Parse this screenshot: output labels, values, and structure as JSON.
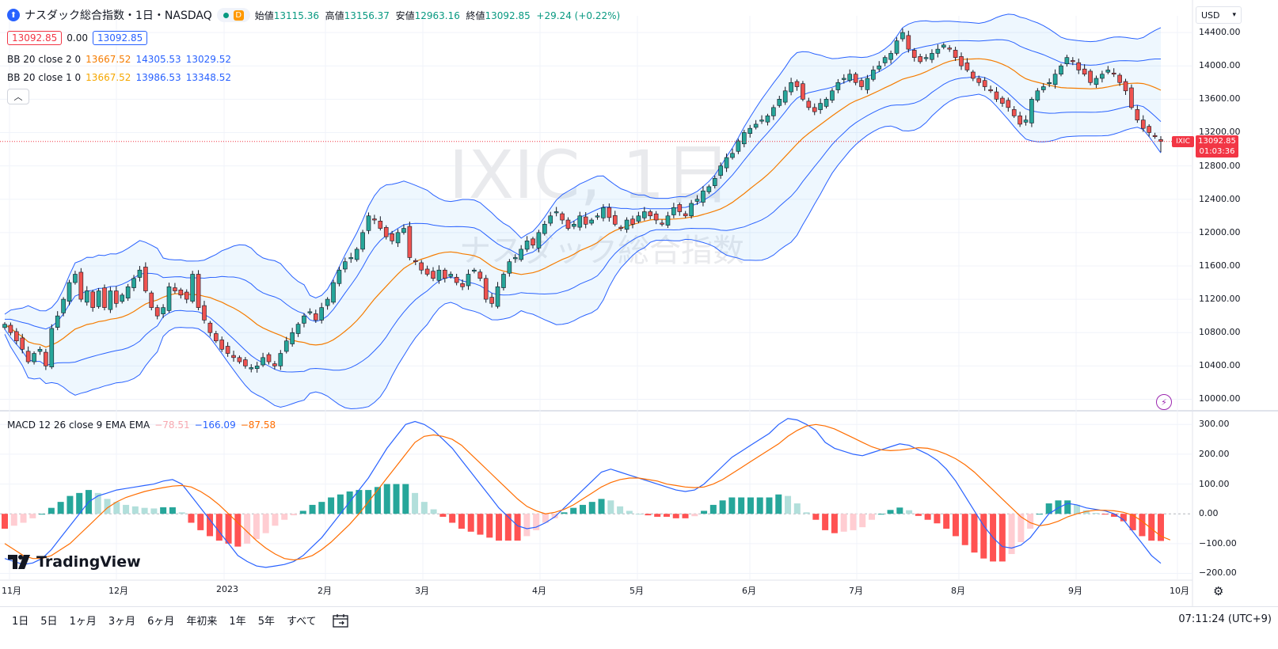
{
  "header": {
    "symbol_name": "ナスダック総合指数・1日・NASDAQ",
    "delay_badge": "D",
    "ohlc": {
      "open_label": "始値",
      "open": "13115.36",
      "high_label": "高値",
      "high": "13156.37",
      "low_label": "安値",
      "low": "12963.16",
      "close_label": "終値",
      "close": "13092.85",
      "change": "+29.24 (+0.22%)"
    },
    "bid": "13092.85",
    "spread": "0.00",
    "ask": "13092.85"
  },
  "indicators": {
    "bb2": {
      "label": "BB 20 close 2 0",
      "basis": "13667.52",
      "upper": "14305.53",
      "lower": "13029.52"
    },
    "bb1": {
      "label": "BB 20 close 1 0",
      "basis": "13667.52",
      "upper": "13986.53",
      "lower": "13348.52"
    },
    "macd": {
      "label": "MACD 12 26 close 9 EMA EMA",
      "hist": "−78.51",
      "macd": "−166.09",
      "signal": "−87.58"
    }
  },
  "watermark": {
    "main": "IXIC, 1日",
    "sub": "ナスダック総合指数"
  },
  "price_axis": {
    "currency": "USD",
    "labels": [
      "14400.00",
      "14000.00",
      "13600.00",
      "13200.00",
      "12800.00",
      "12400.00",
      "12000.00",
      "11600.00",
      "11200.00",
      "10800.00",
      "10400.00",
      "10000.00"
    ],
    "last_symbol": "IXIC",
    "last_price": "13092.85",
    "countdown": "01:03:36"
  },
  "macd_axis": {
    "labels": [
      "300.00",
      "200.00",
      "100.00",
      "0.00",
      "−100.00",
      "−200.00"
    ]
  },
  "time_axis": {
    "labels": [
      "11月",
      "12月",
      "2023",
      "2月",
      "3月",
      "4月",
      "5月",
      "6月",
      "7月",
      "8月",
      "9月",
      "10月"
    ]
  },
  "bottom_bar": {
    "ranges": [
      "1日",
      "5日",
      "1ヶ月",
      "3ヶ月",
      "6ヶ月",
      "年初来",
      "1年",
      "5年",
      "すべて"
    ],
    "clock": "07:11:24 (UTC+9)"
  },
  "brand": {
    "name": "TradingView"
  },
  "colors": {
    "up": "#26a69a",
    "down": "#ef5350",
    "bb_basis": "#f57c00",
    "bb_band": "#2962ff",
    "macd_line": "#2962ff",
    "signal_line": "#ff6d00",
    "last_price": "#f23645"
  },
  "chart_data": [
    {
      "type": "candlestick",
      "title": "IXIC, 1日",
      "ylim": [
        9900,
        14600
      ],
      "x_start": "2022-10-20",
      "x_end": "2023-09-22",
      "close_series_approx": [
        10900,
        10800,
        10700,
        10600,
        10450,
        10550,
        10600,
        10400,
        10850,
        11000,
        11200,
        11400,
        11500,
        11200,
        11300,
        11100,
        11300,
        11100,
        11300,
        11150,
        11250,
        11350,
        11450,
        11550,
        11300,
        11100,
        11000,
        11100,
        11350,
        11300,
        11250,
        11200,
        11500,
        11100,
        10950,
        10800,
        10700,
        10600,
        10550,
        10500,
        10450,
        10400,
        10380,
        10400,
        10500,
        10450,
        10400,
        10550,
        10700,
        10800,
        10900,
        11000,
        11050,
        10950,
        11100,
        11200,
        11400,
        11550,
        11650,
        11700,
        11800,
        12000,
        12200,
        12150,
        12050,
        11950,
        11900,
        12000,
        12050,
        11700,
        11650,
        11550,
        11500,
        11450,
        11550,
        11450,
        11500,
        11400,
        11350,
        11500,
        11550,
        11450,
        11200,
        11150,
        11350,
        11500,
        11650,
        11700,
        11800,
        11900,
        11850,
        12000,
        12100,
        12200,
        12250,
        12150,
        12050,
        12100,
        12200,
        12100,
        12150,
        12200,
        12300,
        12180,
        12100,
        12050,
        12150,
        12100,
        12200,
        12250,
        12200,
        12150,
        12100,
        12200,
        12300,
        12250,
        12200,
        12350,
        12400,
        12500,
        12550,
        12650,
        12800,
        12900,
        12950,
        13100,
        13200,
        13250,
        13300,
        13350,
        13400,
        13500,
        13600,
        13700,
        13800,
        13750,
        13600,
        13500,
        13450,
        13550,
        13600,
        13700,
        13800,
        13850,
        13900,
        13800,
        13750,
        13850,
        13950,
        14000,
        14100,
        14150,
        14300,
        14400,
        14200,
        14100,
        14050,
        14100,
        14150,
        14200,
        14250,
        14200,
        14100,
        14000,
        13950,
        13850,
        13800,
        13750,
        13700,
        13600,
        13550,
        13500,
        13400,
        13300,
        13350,
        13600,
        13700,
        13750,
        13800,
        13900,
        14000,
        14100,
        14050,
        13950,
        13900,
        13800,
        13850,
        13900,
        13950,
        13900,
        13800,
        13700,
        13500,
        13350,
        13250,
        13200,
        13150,
        13092.85
      ],
      "last": {
        "open": 13115.36,
        "high": 13156.37,
        "low": 12963.16,
        "close": 13092.85
      },
      "bollinger_2sd": {
        "basis": 13667.52,
        "upper": 14305.53,
        "lower": 13029.52
      },
      "bollinger_1sd": {
        "basis": 13667.52,
        "upper": 13986.53,
        "lower": 13348.52
      }
    },
    {
      "type": "line",
      "title": "MACD 12 26 close 9 EMA EMA",
      "ylim": [
        -220,
        330
      ],
      "macd_series_approx": [
        -150,
        -160,
        -170,
        -165,
        -150,
        -120,
        -80,
        -40,
        0,
        40,
        60,
        70,
        80,
        85,
        90,
        95,
        100,
        110,
        115,
        100,
        60,
        20,
        -20,
        -60,
        -100,
        -140,
        -160,
        -175,
        -180,
        -175,
        -170,
        -160,
        -140,
        -110,
        -80,
        -40,
        0,
        40,
        80,
        120,
        170,
        220,
        260,
        300,
        310,
        300,
        280,
        250,
        220,
        180,
        140,
        100,
        60,
        20,
        -10,
        -40,
        -50,
        -45,
        -30,
        -10,
        20,
        50,
        80,
        110,
        140,
        150,
        140,
        130,
        120,
        110,
        100,
        90,
        80,
        75,
        80,
        100,
        130,
        160,
        190,
        210,
        230,
        250,
        270,
        300,
        320,
        315,
        300,
        280,
        240,
        220,
        210,
        200,
        195,
        205,
        215,
        225,
        235,
        230,
        215,
        200,
        180,
        150,
        110,
        60,
        10,
        -40,
        -80,
        -110,
        -115,
        -105,
        -80,
        -40,
        0,
        20,
        35,
        30,
        20,
        15,
        10,
        0,
        -20,
        -60,
        -100,
        -140,
        -166.09
      ],
      "signal_series_approx": [
        -100,
        -120,
        -140,
        -150,
        -150,
        -140,
        -120,
        -100,
        -70,
        -40,
        -10,
        20,
        40,
        55,
        65,
        75,
        82,
        88,
        93,
        95,
        90,
        75,
        55,
        30,
        0,
        -30,
        -60,
        -90,
        -115,
        -135,
        -150,
        -155,
        -150,
        -140,
        -120,
        -95,
        -65,
        -35,
        0,
        40,
        80,
        120,
        160,
        200,
        240,
        260,
        265,
        260,
        250,
        230,
        200,
        170,
        140,
        110,
        80,
        50,
        25,
        10,
        0,
        5,
        15,
        30,
        50,
        70,
        90,
        105,
        115,
        120,
        120,
        115,
        110,
        100,
        95,
        90,
        88,
        90,
        100,
        115,
        135,
        155,
        175,
        195,
        215,
        235,
        260,
        280,
        295,
        300,
        295,
        285,
        270,
        255,
        240,
        225,
        215,
        212,
        214,
        218,
        222,
        220,
        212,
        200,
        185,
        165,
        140,
        110,
        80,
        50,
        20,
        -10,
        -30,
        -40,
        -35,
        -25,
        -10,
        0,
        8,
        12,
        12,
        10,
        5,
        -5,
        -25,
        -50,
        -75,
        -87.58
      ],
      "histogram_last": -78.51
    }
  ]
}
